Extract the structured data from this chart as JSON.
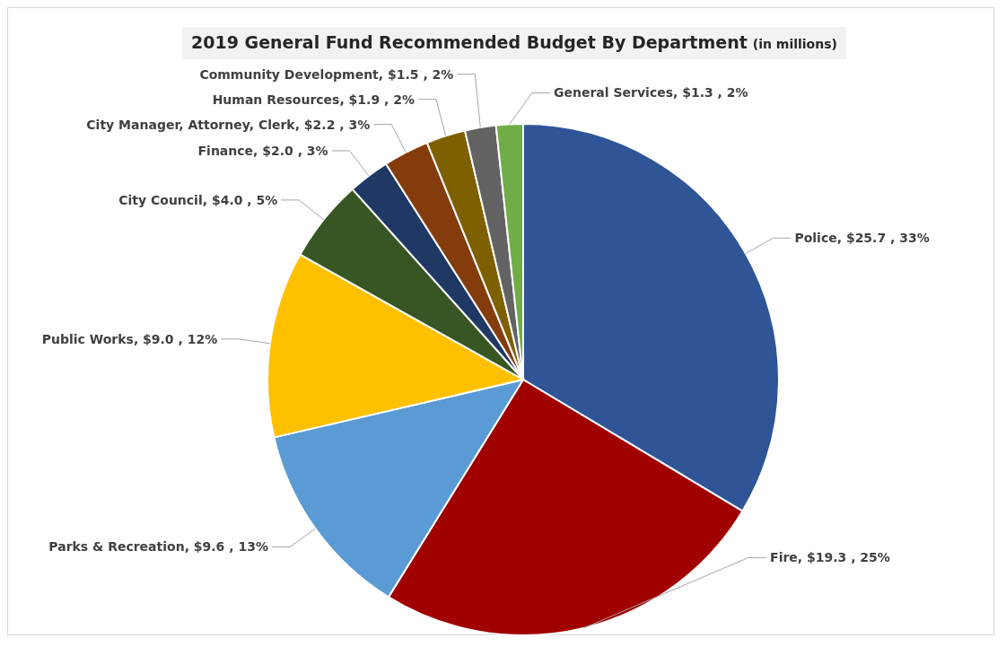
{
  "chart_data": {
    "type": "pie",
    "title": "2019 General Fund Recommended Budget By Department",
    "subtitle": "(in millions)",
    "categories": [
      "Police",
      "Fire",
      "Parks & Recreation",
      "Public Works",
      "City Council",
      "Finance",
      "City Manager, Attorney, Clerk",
      "Human Resources",
      "Community Development",
      "General Services"
    ],
    "values": [
      25.7,
      19.3,
      9.6,
      9.0,
      4.0,
      2.0,
      2.2,
      1.9,
      1.5,
      1.3
    ],
    "value_labels": [
      "$25.7 , 33%",
      "$19.3 , 25%",
      "$9.6 , 13%",
      "$9.0 , 12%",
      "$4.0 , 5%",
      "$2.0 , 3%",
      "$2.2 , 3%",
      "$1.9 , 2%",
      "$1.5 , 2%",
      "$1.3 , 2%"
    ],
    "colors": [
      "#2f5597",
      "#a00000",
      "#5b9bd5",
      "#ffc000",
      "#375623",
      "#1f3864",
      "#843c0c",
      "#7f6000",
      "#636363",
      "#70ad47"
    ]
  }
}
